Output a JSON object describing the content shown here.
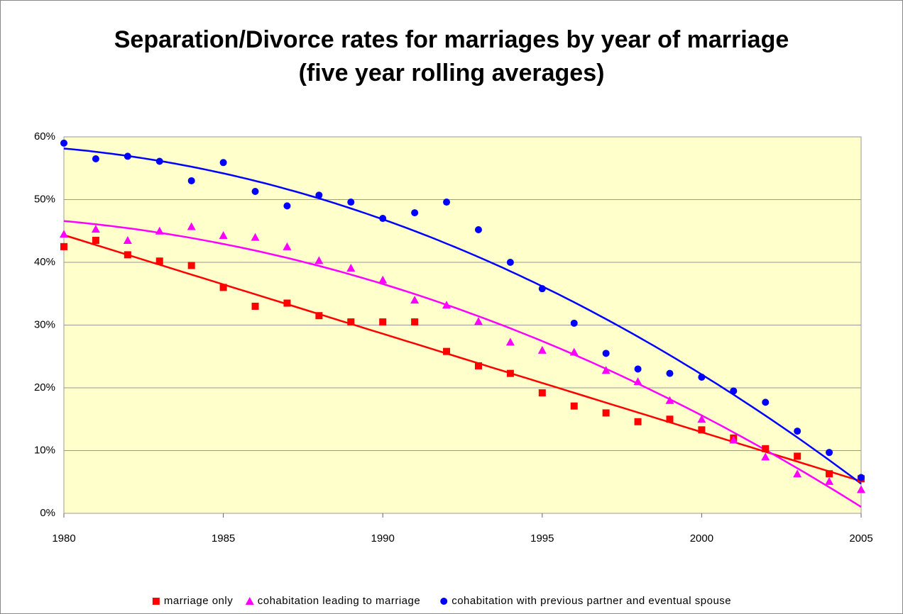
{
  "chart_data": {
    "type": "scatter",
    "title": "Separation/Divorce rates for marriages by year of marriage",
    "subtitle": "(five year rolling averages)",
    "x": [
      1980,
      1981,
      1982,
      1983,
      1984,
      1985,
      1986,
      1987,
      1988,
      1989,
      1990,
      1991,
      1992,
      1993,
      1994,
      1995,
      1996,
      1997,
      1998,
      1999,
      2000,
      2001,
      2002,
      2003,
      2004,
      2005
    ],
    "series": [
      {
        "name": "marriage only",
        "color": "#ff0000",
        "marker": "square",
        "values": [
          42.5,
          43.5,
          41.2,
          40.2,
          39.5,
          36,
          33,
          33.5,
          31.5,
          30.5,
          30.5,
          30.5,
          25.8,
          23.5,
          22.3,
          19.2,
          17.1,
          16,
          14.6,
          15,
          13.3,
          12,
          10.3,
          9.1,
          6.3,
          5.5
        ]
      },
      {
        "name": "cohabitation leading to marriage",
        "color": "#ff00ff",
        "marker": "triangle",
        "values": [
          44.5,
          45.3,
          43.5,
          45,
          45.7,
          44.3,
          44,
          42.5,
          40.3,
          39.1,
          37.2,
          34,
          33.2,
          30.6,
          27.3,
          26,
          25.7,
          22.8,
          21,
          18,
          15,
          11.7,
          9,
          6.3,
          5.1,
          3.8
        ]
      },
      {
        "name": "cohabitation with previous partner and eventual spouse",
        "color": "#0000ff",
        "marker": "circle",
        "values": [
          59,
          56.5,
          56.9,
          56.1,
          53,
          55.9,
          51.3,
          49,
          50.7,
          49.6,
          47,
          47.9,
          49.6,
          45.2,
          40,
          35.8,
          30.3,
          25.5,
          23,
          22.3,
          21.7,
          19.5,
          17.7,
          13.1,
          9.7,
          5.7
        ]
      }
    ],
    "trendline": "polynomial",
    "trendline_order": 2,
    "xlim": [
      1980,
      2005
    ],
    "xticks": [
      1980,
      1985,
      1990,
      1995,
      2000,
      2005
    ],
    "ylim": [
      0,
      60
    ],
    "yticks": [
      {
        "value": 0,
        "label": "0%"
      },
      {
        "value": 10,
        "label": "10%"
      },
      {
        "value": 20,
        "label": "20%"
      },
      {
        "value": 30,
        "label": "30%"
      },
      {
        "value": 40,
        "label": "40%"
      },
      {
        "value": 50,
        "label": "50%"
      },
      {
        "value": 60,
        "label": "60%"
      }
    ],
    "grid": true,
    "legend": "bottom",
    "plot_background": "#ffffcc"
  }
}
